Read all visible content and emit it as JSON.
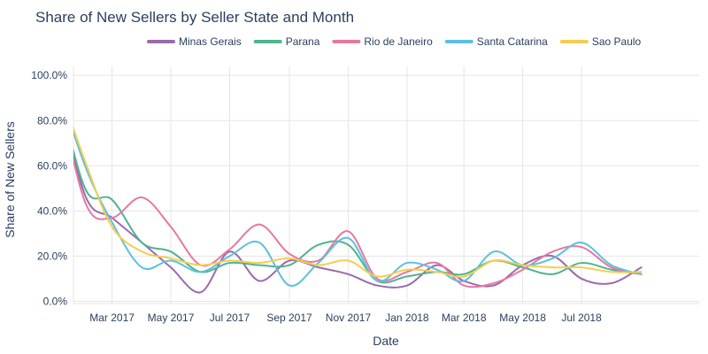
{
  "chart_data": {
    "type": "line",
    "title": "Share of New Sellers by Seller State and Month",
    "xlabel": "Date",
    "ylabel": "Share of New Sellers",
    "ylim": [
      -0.01,
      1.04
    ],
    "y_ticks": [
      0,
      0.2,
      0.4,
      0.6,
      0.8,
      1.0
    ],
    "y_tick_labels": [
      "0.0%",
      "20.0%",
      "40.0%",
      "60.0%",
      "80.0%",
      "100.0%"
    ],
    "x_range": [
      "2017-01-20",
      "2018-10-31"
    ],
    "x_ticks": [
      "2017-03-01",
      "2017-05-01",
      "2017-07-01",
      "2017-09-01",
      "2017-11-01",
      "2018-01-01",
      "2018-03-01",
      "2018-05-01",
      "2018-07-01"
    ],
    "x_tick_labels": [
      "Mar 2017",
      "May 2017",
      "Jul 2017",
      "Sep 2017",
      "Nov 2017",
      "Jan 2018",
      "Mar 2018",
      "May 2018",
      "Jul 2018"
    ],
    "legend_position": "top",
    "grid": true,
    "x": [
      "2017-01-01",
      "2017-02-01",
      "2017-03-01",
      "2017-04-01",
      "2017-05-01",
      "2017-06-01",
      "2017-07-01",
      "2017-08-01",
      "2017-09-01",
      "2017-10-01",
      "2017-11-01",
      "2017-12-01",
      "2018-01-01",
      "2018-02-01",
      "2018-03-01",
      "2018-04-01",
      "2018-05-01",
      "2018-06-01",
      "2018-07-01",
      "2018-08-01",
      "2018-09-01"
    ],
    "series": [
      {
        "name": "Minas Gerais",
        "color": "#9b6aad",
        "values": [
          1.0,
          0.47,
          0.37,
          0.26,
          0.15,
          0.04,
          0.22,
          0.09,
          0.18,
          0.15,
          0.12,
          0.07,
          0.07,
          0.16,
          0.09,
          0.07,
          0.16,
          0.2,
          0.1,
          0.08,
          0.15
        ]
      },
      {
        "name": "Parana",
        "color": "#4fb48f",
        "values": [
          1.0,
          0.5,
          0.45,
          0.26,
          0.22,
          0.13,
          0.17,
          0.16,
          0.16,
          0.25,
          0.25,
          0.09,
          0.11,
          0.13,
          0.12,
          0.18,
          0.15,
          0.12,
          0.17,
          0.14,
          0.12
        ]
      },
      {
        "name": "Rio de Janeiro",
        "color": "#e4799f",
        "values": [
          1.0,
          0.44,
          0.37,
          0.46,
          0.33,
          0.16,
          0.23,
          0.34,
          0.21,
          0.18,
          0.31,
          0.1,
          0.13,
          0.17,
          0.07,
          0.08,
          0.14,
          0.22,
          0.24,
          0.15,
          0.12
        ]
      },
      {
        "name": "Santa Catarina",
        "color": "#5cc0e0",
        "values": [
          1.0,
          0.6,
          0.35,
          0.15,
          0.18,
          0.13,
          0.2,
          0.26,
          0.07,
          0.17,
          0.28,
          0.09,
          0.17,
          0.14,
          0.09,
          0.22,
          0.16,
          0.19,
          0.26,
          0.16,
          0.12
        ]
      },
      {
        "name": "Sao Paulo",
        "color": "#f5cd50",
        "values": [
          1.0,
          0.62,
          0.33,
          0.22,
          0.19,
          0.16,
          0.18,
          0.17,
          0.19,
          0.16,
          0.18,
          0.11,
          0.14,
          0.13,
          0.11,
          0.18,
          0.16,
          0.15,
          0.15,
          0.13,
          0.13
        ]
      }
    ]
  }
}
